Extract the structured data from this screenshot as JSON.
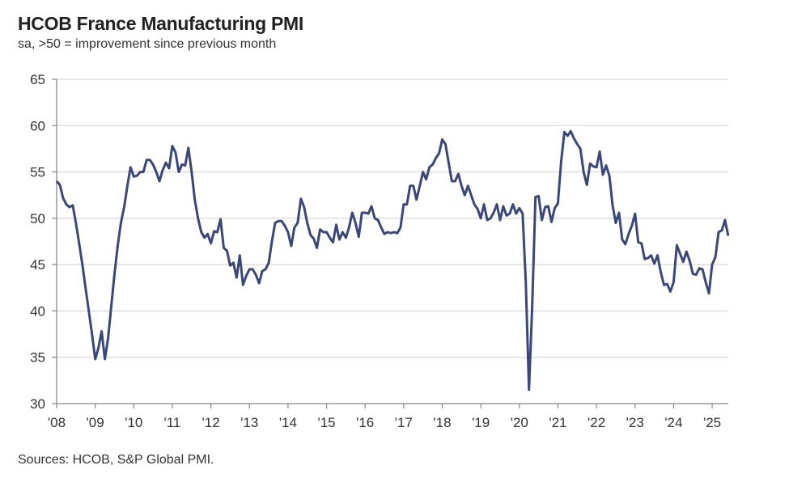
{
  "chart_data": {
    "type": "line",
    "title": "HCOB France Manufacturing PMI",
    "subtitle": "sa, >50 = improvement since previous month",
    "source": "Sources: HCOB, S&P Global PMI.",
    "xlabel": "",
    "ylabel": "",
    "ylim": [
      30,
      65
    ],
    "yticks": [
      30,
      35,
      40,
      45,
      50,
      55,
      60,
      65
    ],
    "xticks": [
      "'08",
      "'09",
      "'10",
      "'11",
      "'12",
      "'13",
      "'14",
      "'15",
      "'16",
      "'17",
      "'18",
      "'19",
      "'20",
      "'21",
      "'22",
      "'23",
      "'24",
      "'25"
    ],
    "xrange": [
      "2008-01",
      "2025-07"
    ],
    "grid": "horizontal",
    "line_color": "#3b4778",
    "points": [
      [
        "2008-01",
        54.0
      ],
      [
        "2008-02",
        53.6
      ],
      [
        "2008-03",
        52.2
      ],
      [
        "2008-04",
        51.5
      ],
      [
        "2008-05",
        51.2
      ],
      [
        "2008-06",
        51.4
      ],
      [
        "2008-07",
        49.5
      ],
      [
        "2008-08",
        47.3
      ],
      [
        "2008-09",
        45.0
      ],
      [
        "2008-10",
        42.5
      ],
      [
        "2008-11",
        40.0
      ],
      [
        "2008-12",
        37.5
      ],
      [
        "2009-01",
        34.8
      ],
      [
        "2009-02",
        36.0
      ],
      [
        "2009-03",
        37.8
      ],
      [
        "2009-04",
        34.8
      ],
      [
        "2009-05",
        37.0
      ],
      [
        "2009-06",
        40.5
      ],
      [
        "2009-07",
        44.0
      ],
      [
        "2009-08",
        47.0
      ],
      [
        "2009-09",
        49.5
      ],
      [
        "2009-10",
        51.2
      ],
      [
        "2009-11",
        53.5
      ],
      [
        "2009-12",
        55.5
      ],
      [
        "2010-01",
        54.5
      ],
      [
        "2010-02",
        54.6
      ],
      [
        "2010-03",
        55.0
      ],
      [
        "2010-04",
        55.0
      ],
      [
        "2010-05",
        56.3
      ],
      [
        "2010-06",
        56.3
      ],
      [
        "2010-07",
        55.8
      ],
      [
        "2010-08",
        55.0
      ],
      [
        "2010-09",
        54.0
      ],
      [
        "2010-10",
        55.2
      ],
      [
        "2010-11",
        56.0
      ],
      [
        "2010-12",
        55.4
      ],
      [
        "2011-01",
        57.8
      ],
      [
        "2011-02",
        57.1
      ],
      [
        "2011-03",
        55.0
      ],
      [
        "2011-04",
        55.8
      ],
      [
        "2011-05",
        55.7
      ],
      [
        "2011-06",
        57.6
      ],
      [
        "2011-07",
        55.0
      ],
      [
        "2011-08",
        52.0
      ],
      [
        "2011-09",
        50.0
      ],
      [
        "2011-10",
        48.5
      ],
      [
        "2011-11",
        47.9
      ],
      [
        "2011-12",
        48.3
      ],
      [
        "2012-01",
        47.3
      ],
      [
        "2012-02",
        48.6
      ],
      [
        "2012-03",
        48.5
      ],
      [
        "2012-04",
        49.9
      ],
      [
        "2012-05",
        46.8
      ],
      [
        "2012-06",
        46.5
      ],
      [
        "2012-07",
        44.9
      ],
      [
        "2012-08",
        45.2
      ],
      [
        "2012-09",
        43.6
      ],
      [
        "2012-10",
        46.0
      ],
      [
        "2012-11",
        42.8
      ],
      [
        "2012-12",
        43.8
      ],
      [
        "2013-01",
        44.5
      ],
      [
        "2013-02",
        44.5
      ],
      [
        "2013-03",
        43.9
      ],
      [
        "2013-04",
        43.0
      ],
      [
        "2013-05",
        44.3
      ],
      [
        "2013-06",
        44.5
      ],
      [
        "2013-07",
        45.2
      ],
      [
        "2013-08",
        47.5
      ],
      [
        "2013-09",
        49.5
      ],
      [
        "2013-10",
        49.7
      ],
      [
        "2013-11",
        49.7
      ],
      [
        "2013-12",
        49.2
      ],
      [
        "2014-01",
        48.5
      ],
      [
        "2014-02",
        47.0
      ],
      [
        "2014-03",
        49.0
      ],
      [
        "2014-04",
        49.5
      ],
      [
        "2014-05",
        52.1
      ],
      [
        "2014-06",
        51.2
      ],
      [
        "2014-07",
        49.5
      ],
      [
        "2014-08",
        48.2
      ],
      [
        "2014-09",
        47.8
      ],
      [
        "2014-10",
        46.8
      ],
      [
        "2014-11",
        48.8
      ],
      [
        "2014-12",
        48.5
      ],
      [
        "2015-01",
        48.5
      ],
      [
        "2015-02",
        47.9
      ],
      [
        "2015-03",
        47.4
      ],
      [
        "2015-04",
        49.3
      ],
      [
        "2015-05",
        47.7
      ],
      [
        "2015-06",
        48.5
      ],
      [
        "2015-07",
        47.9
      ],
      [
        "2015-08",
        49.0
      ],
      [
        "2015-09",
        50.6
      ],
      [
        "2015-10",
        49.5
      ],
      [
        "2015-11",
        48.0
      ],
      [
        "2015-12",
        50.6
      ],
      [
        "2016-01",
        50.6
      ],
      [
        "2016-02",
        50.5
      ],
      [
        "2016-03",
        51.3
      ],
      [
        "2016-04",
        50.0
      ],
      [
        "2016-05",
        49.8
      ],
      [
        "2016-06",
        49.0
      ],
      [
        "2016-07",
        48.3
      ],
      [
        "2016-08",
        48.5
      ],
      [
        "2016-09",
        48.4
      ],
      [
        "2016-10",
        48.5
      ],
      [
        "2016-11",
        48.4
      ],
      [
        "2016-12",
        49.0
      ],
      [
        "2017-01",
        51.5
      ],
      [
        "2017-02",
        51.5
      ],
      [
        "2017-03",
        53.5
      ],
      [
        "2017-04",
        53.5
      ],
      [
        "2017-05",
        52.0
      ],
      [
        "2017-06",
        53.5
      ],
      [
        "2017-07",
        55.0
      ],
      [
        "2017-08",
        54.2
      ],
      [
        "2017-09",
        55.5
      ],
      [
        "2017-10",
        55.8
      ],
      [
        "2017-11",
        56.5
      ],
      [
        "2017-12",
        57.0
      ],
      [
        "2018-01",
        58.5
      ],
      [
        "2018-02",
        58.0
      ],
      [
        "2018-03",
        56.0
      ],
      [
        "2018-04",
        54.0
      ],
      [
        "2018-05",
        54.0
      ],
      [
        "2018-06",
        54.8
      ],
      [
        "2018-07",
        53.5
      ],
      [
        "2018-08",
        52.5
      ],
      [
        "2018-09",
        53.5
      ],
      [
        "2018-10",
        52.5
      ],
      [
        "2018-11",
        51.5
      ],
      [
        "2018-12",
        51.0
      ],
      [
        "2019-01",
        50.0
      ],
      [
        "2019-02",
        51.5
      ],
      [
        "2019-03",
        49.8
      ],
      [
        "2019-04",
        50.0
      ],
      [
        "2019-05",
        50.6
      ],
      [
        "2019-06",
        51.5
      ],
      [
        "2019-07",
        49.8
      ],
      [
        "2019-08",
        51.3
      ],
      [
        "2019-09",
        50.3
      ],
      [
        "2019-10",
        50.5
      ],
      [
        "2019-11",
        51.5
      ],
      [
        "2019-12",
        50.5
      ],
      [
        "2020-01",
        51.1
      ],
      [
        "2020-02",
        50.5
      ],
      [
        "2020-03",
        43.2
      ],
      [
        "2020-04",
        31.5
      ],
      [
        "2020-05",
        40.6
      ],
      [
        "2020-06",
        52.3
      ],
      [
        "2020-07",
        52.4
      ],
      [
        "2020-08",
        49.8
      ],
      [
        "2020-09",
        51.2
      ],
      [
        "2020-10",
        51.3
      ],
      [
        "2020-11",
        49.6
      ],
      [
        "2020-12",
        51.1
      ],
      [
        "2021-01",
        51.6
      ],
      [
        "2021-02",
        56.1
      ],
      [
        "2021-03",
        59.3
      ],
      [
        "2021-04",
        58.9
      ],
      [
        "2021-05",
        59.4
      ],
      [
        "2021-06",
        58.6
      ],
      [
        "2021-07",
        58.0
      ],
      [
        "2021-08",
        57.5
      ],
      [
        "2021-09",
        55.0
      ],
      [
        "2021-10",
        53.6
      ],
      [
        "2021-11",
        55.9
      ],
      [
        "2021-12",
        55.6
      ],
      [
        "2022-01",
        55.5
      ],
      [
        "2022-02",
        57.2
      ],
      [
        "2022-03",
        54.7
      ],
      [
        "2022-04",
        55.7
      ],
      [
        "2022-05",
        54.6
      ],
      [
        "2022-06",
        51.4
      ],
      [
        "2022-07",
        49.5
      ],
      [
        "2022-08",
        50.6
      ],
      [
        "2022-09",
        47.7
      ],
      [
        "2022-10",
        47.2
      ],
      [
        "2022-11",
        48.3
      ],
      [
        "2022-12",
        49.2
      ],
      [
        "2023-01",
        50.5
      ],
      [
        "2023-02",
        47.4
      ],
      [
        "2023-03",
        47.3
      ],
      [
        "2023-04",
        45.6
      ],
      [
        "2023-05",
        45.7
      ],
      [
        "2023-06",
        46.0
      ],
      [
        "2023-07",
        45.1
      ],
      [
        "2023-08",
        46.0
      ],
      [
        "2023-09",
        44.2
      ],
      [
        "2023-10",
        42.8
      ],
      [
        "2023-11",
        42.9
      ],
      [
        "2023-12",
        42.1
      ],
      [
        "2024-01",
        43.1
      ],
      [
        "2024-02",
        47.1
      ],
      [
        "2024-03",
        46.2
      ],
      [
        "2024-04",
        45.3
      ],
      [
        "2024-05",
        46.4
      ],
      [
        "2024-06",
        45.4
      ],
      [
        "2024-07",
        44.0
      ],
      [
        "2024-08",
        43.9
      ],
      [
        "2024-09",
        44.6
      ],
      [
        "2024-10",
        44.5
      ],
      [
        "2024-11",
        43.1
      ],
      [
        "2024-12",
        41.9
      ],
      [
        "2025-01",
        45.0
      ],
      [
        "2025-02",
        45.8
      ],
      [
        "2025-03",
        48.5
      ],
      [
        "2025-04",
        48.7
      ],
      [
        "2025-05",
        49.8
      ],
      [
        "2025-06",
        48.1
      ]
    ]
  }
}
